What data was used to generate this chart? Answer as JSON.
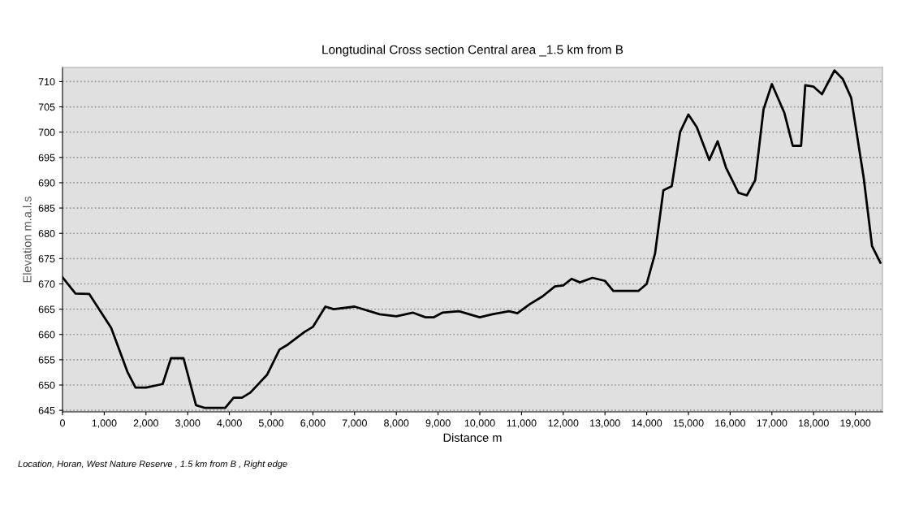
{
  "chart_data": {
    "type": "line",
    "title": "Longtudinal Cross section Central area _1.5 km from B",
    "xlabel": "Distance m",
    "ylabel": "Elevation m.a.l.s",
    "annotations": [
      "Location, Horan, West Nature Reserve , 1.5 km from B , Right edge"
    ],
    "series": [
      {
        "color": "#000000",
        "x": [
          0,
          311,
          642,
          1167,
          1556,
          1750,
          2000,
          2400,
          2600,
          2900,
          3200,
          3400,
          3900,
          4100,
          4300,
          4500,
          4900,
          5200,
          5400,
          5800,
          6000,
          6300,
          6500,
          7000,
          7600,
          8000,
          8400,
          8700,
          8900,
          9100,
          9500,
          10000,
          10300,
          10700,
          10900,
          11200,
          11500,
          11800,
          12000,
          12200,
          12400,
          12700,
          13000,
          13200,
          13800,
          14000,
          14200,
          14400,
          14600,
          14800,
          15000,
          15200,
          15500,
          15700,
          15900,
          16200,
          16400,
          16600,
          16800,
          17000,
          17300,
          17500,
          17700,
          17800,
          18000,
          18200,
          18500,
          18700,
          18900,
          19200,
          19400,
          19600
        ],
        "values": [
          671.3,
          668.1,
          668,
          661.3,
          652.6,
          649.5,
          649.5,
          650.2,
          655.3,
          655.3,
          646,
          645.5,
          645.5,
          647.5,
          647.5,
          648.5,
          652,
          657,
          658,
          660.5,
          661.5,
          665.5,
          665,
          665.5,
          664,
          663.6,
          664.3,
          663.4,
          663.4,
          664.3,
          664.6,
          663.4,
          664,
          664.6,
          664.2,
          666,
          667.5,
          669.5,
          669.7,
          671,
          670.3,
          671.2,
          670.6,
          668.6,
          668.6,
          670,
          676,
          688.5,
          689.3,
          700,
          703.5,
          701,
          694.5,
          698.2,
          693,
          688,
          687.5,
          690.5,
          704.5,
          709.5,
          703.8,
          697.3,
          697.3,
          709.3,
          709,
          707.5,
          712.2,
          710.5,
          706.8,
          691,
          677.5,
          674.2
        ]
      }
    ],
    "xlim": [
      0,
      19650
    ],
    "ylim": [
      644.7,
      712.8
    ],
    "xticks": [
      0,
      {
        "value": 1000,
        "label": "1,000"
      },
      {
        "value": 2000,
        "label": "2,000"
      },
      {
        "value": 3000,
        "label": "3,000"
      },
      {
        "value": 4000,
        "label": "4,000"
      },
      {
        "value": 5000,
        "label": "5,000"
      },
      {
        "value": 6000,
        "label": "6,000"
      },
      {
        "value": 7000,
        "label": "7,000"
      },
      {
        "value": 8000,
        "label": "8,000"
      },
      {
        "value": 9000,
        "label": "9,000"
      },
      {
        "value": 10000,
        "label": "10,000"
      },
      {
        "value": 11000,
        "label": "11,000"
      },
      {
        "value": 12000,
        "label": "12,000"
      },
      {
        "value": 13000,
        "label": "13,000"
      },
      {
        "value": 14000,
        "label": "14,000"
      },
      {
        "value": 15000,
        "label": "15,000"
      },
      {
        "value": 16000,
        "label": "16,000"
      },
      {
        "value": 17000,
        "label": "17,000"
      },
      {
        "value": 18000,
        "label": "18,000"
      },
      {
        "value": 19000,
        "label": "19,000"
      }
    ],
    "yticks": [
      645,
      650,
      655,
      660,
      665,
      670,
      675,
      680,
      685,
      690,
      695,
      700,
      705,
      710
    ],
    "grid": "y",
    "legend": false,
    "marker": "none",
    "line_style": "solid"
  }
}
